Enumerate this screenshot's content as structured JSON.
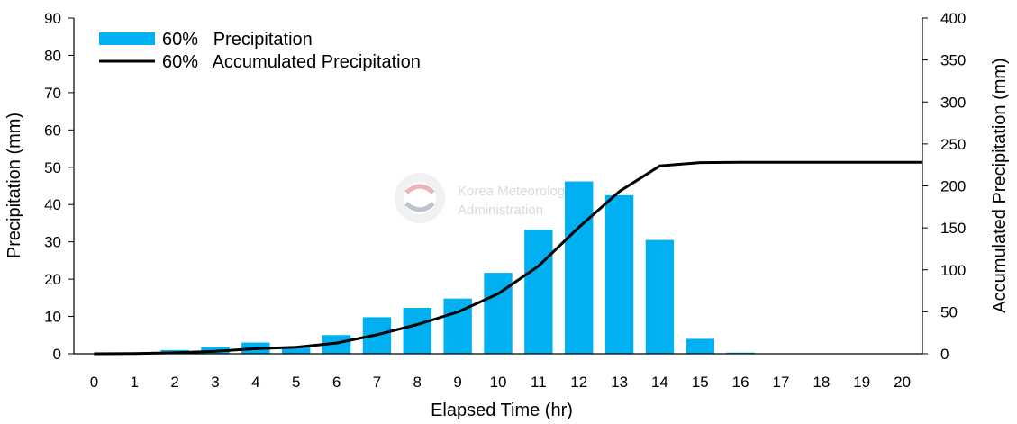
{
  "chart_data": {
    "type": "bar",
    "x_categories": [
      "0",
      "1",
      "2",
      "3",
      "4",
      "5",
      "6",
      "7",
      "8",
      "9",
      "10",
      "11",
      "12",
      "13",
      "14",
      "15",
      "16",
      "17",
      "18",
      "19",
      "20"
    ],
    "xlabel": "Elapsed Time (hr)",
    "ylabel_left": "Precipitation (mm)",
    "ylabel_right": "Accumulated Precipitation (mm)",
    "ylim_left": [
      0,
      90
    ],
    "ylim_right": [
      0,
      400
    ],
    "yticks_left": [
      "0",
      "10",
      "20",
      "30",
      "40",
      "50",
      "60",
      "70",
      "80",
      "90"
    ],
    "yticks_right": [
      "0",
      "50",
      "100",
      "150",
      "200",
      "250",
      "300",
      "350",
      "400"
    ],
    "legend_position": "top-left",
    "grid": false,
    "series": [
      {
        "name": "60%   Precipitation",
        "type": "bar",
        "axis": "left",
        "color": "#00b0f0",
        "x": [
          1,
          2,
          3,
          4,
          5,
          6,
          7,
          8,
          9,
          10,
          11,
          12,
          13,
          14,
          15,
          16
        ],
        "values": [
          0.2,
          1.0,
          1.8,
          3.0,
          1.8,
          5.0,
          9.8,
          12.3,
          14.8,
          21.7,
          33.2,
          46.2,
          42.5,
          30.5,
          4.0,
          0.3
        ]
      },
      {
        "name": "60%   Accumulated Precipitation",
        "type": "line",
        "axis": "right",
        "color": "#000000",
        "x": [
          0,
          1,
          2,
          3,
          4,
          5,
          6,
          7,
          8,
          9,
          10,
          11,
          12,
          13,
          14,
          15,
          16,
          17,
          18,
          19,
          20
        ],
        "values": [
          0,
          0.2,
          1.2,
          3.0,
          6.0,
          7.8,
          12.8,
          22.6,
          34.9,
          49.7,
          71.4,
          104.6,
          150.8,
          193.3,
          223.8,
          227.8,
          228.1,
          228.1,
          228.1,
          228.1,
          228.1
        ]
      }
    ]
  },
  "watermark": {
    "line1": "Korea Meteorological",
    "line2": "Administration"
  }
}
